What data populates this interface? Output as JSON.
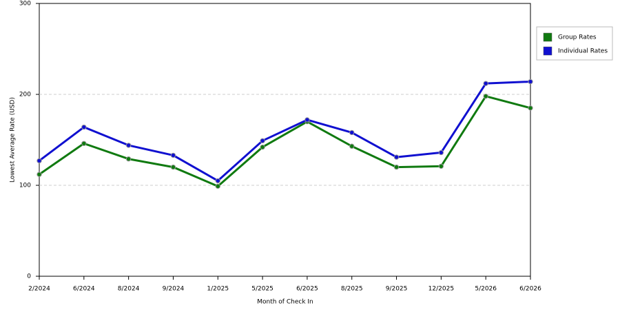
{
  "chart_data": {
    "type": "line",
    "x_label": "Month of Check In",
    "y_label": "Lowest Average Rate (USD)",
    "categories": [
      "2/2024",
      "6/2024",
      "8/2024",
      "9/2024",
      "1/2025",
      "5/2025",
      "6/2025",
      "8/2025",
      "9/2025",
      "12/2025",
      "5/2026",
      "6/2026"
    ],
    "series": [
      {
        "name": "Group Rates",
        "color": "#107a10",
        "values": [
          112,
          146,
          129,
          120,
          99,
          142,
          170,
          143,
          120,
          121,
          198,
          185
        ]
      },
      {
        "name": "Individual Rates",
        "color": "#1010d0",
        "values": [
          127,
          164,
          144,
          133,
          105,
          149,
          172,
          158,
          131,
          136,
          212,
          214
        ]
      }
    ],
    "ylim": [
      0,
      300
    ],
    "yticks": [
      0,
      100,
      200,
      300
    ],
    "grid": true,
    "legend": "right"
  }
}
